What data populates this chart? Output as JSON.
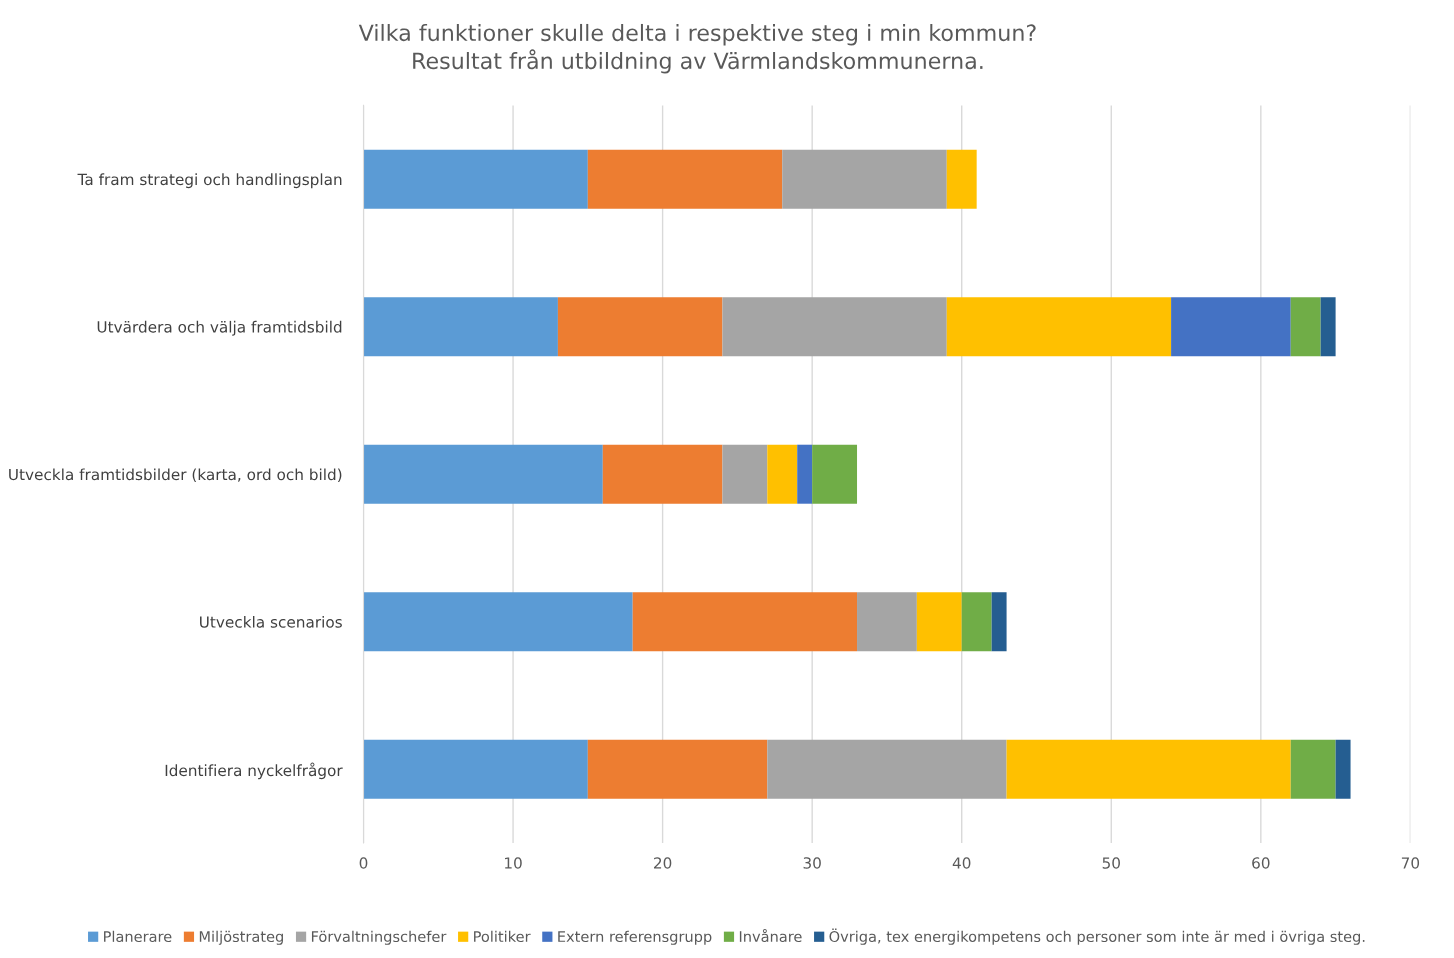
{
  "chart_data": {
    "type": "bar",
    "orientation": "horizontal",
    "stacked": true,
    "title": "Vilka funktioner skulle delta i respektive steg i min kommun?\nResultat från utbildning av Värmlandskommunerna.",
    "categories": [
      "Ta fram strategi och handlingsplan",
      "Utvärdera och välja framtidsbild",
      "Utveckla framtidsbilder (karta, ord och bild)",
      "Utveckla scenarios",
      "Identifiera nyckelfrågor"
    ],
    "series": [
      {
        "name": "Planerare",
        "color": "#5b9bd5",
        "values": [
          15,
          13,
          16,
          18,
          15
        ]
      },
      {
        "name": "Miljöstrateg",
        "color": "#ed7d31",
        "values": [
          13,
          11,
          8,
          15,
          12
        ]
      },
      {
        "name": "Förvaltningschefer",
        "color": "#a5a5a5",
        "values": [
          11,
          15,
          3,
          4,
          16
        ]
      },
      {
        "name": "Politiker",
        "color": "#ffc000",
        "values": [
          2,
          15,
          2,
          3,
          19
        ]
      },
      {
        "name": "Extern referensgrupp",
        "color": "#4472c4",
        "values": [
          0,
          8,
          1,
          0,
          0
        ]
      },
      {
        "name": "Invånare",
        "color": "#70ad47",
        "values": [
          0,
          2,
          3,
          2,
          3
        ]
      },
      {
        "name": "Övriga, tex energikompetens och personer som inte är med i övriga steg.",
        "color": "#255e91",
        "values": [
          0,
          1,
          0,
          1,
          1
        ]
      }
    ],
    "xlim": [
      0,
      70
    ],
    "xticks": [
      0,
      10,
      20,
      30,
      40,
      50,
      60,
      70
    ],
    "grid": "x",
    "legend": "bottom"
  }
}
